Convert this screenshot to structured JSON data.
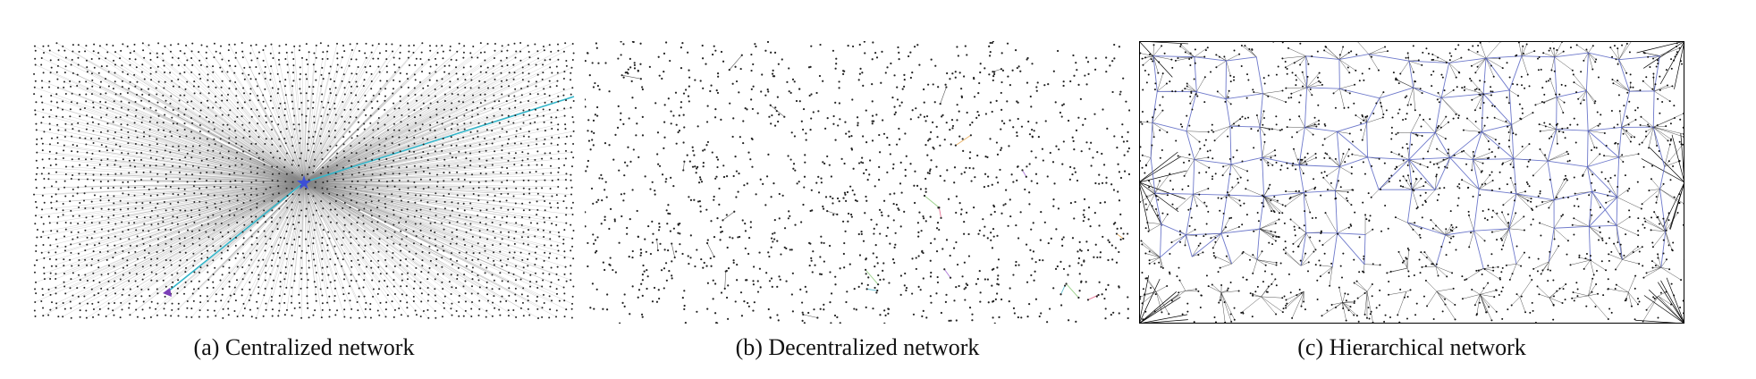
{
  "figure": {
    "panels": [
      {
        "id": "a",
        "caption": "(a) Centralized network",
        "topology": "centralized",
        "edge_color": "#888888",
        "highlight_color": "#33b5c9",
        "center_marker_color": "#3d4fd6",
        "end_marker_color": "#7b3fb8"
      },
      {
        "id": "b",
        "caption": "(b) Decentralized network",
        "topology": "decentralized",
        "edge_color": "#333333",
        "highlight_colors": [
          "#e0507a",
          "#3ab0c8",
          "#7fc46a",
          "#9b59d0",
          "#e6a040"
        ]
      },
      {
        "id": "c",
        "caption": "(c) Hierarchical network",
        "topology": "hierarchical",
        "edge_color": "#1a1a1a",
        "overlay_color": "#5561c2"
      }
    ]
  }
}
